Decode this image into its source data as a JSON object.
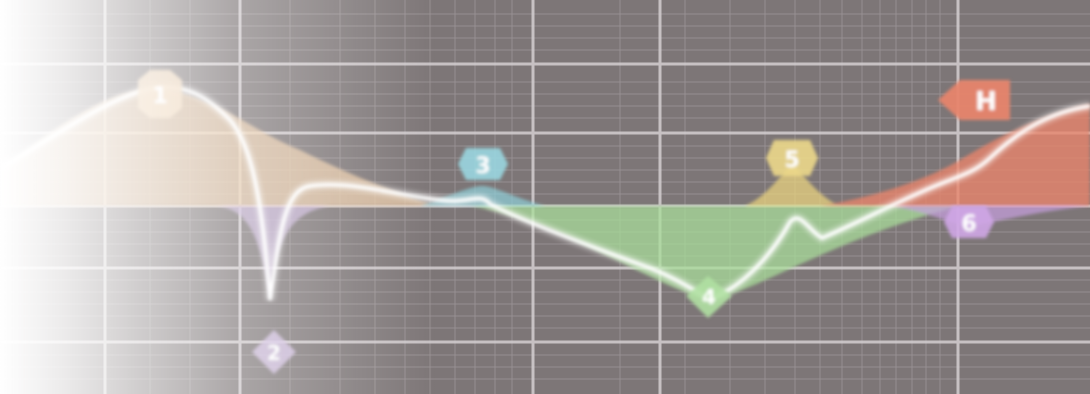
{
  "equalizer": {
    "background_color": "#7d7677",
    "grid_color": "#c9c4c6",
    "curve_color": "#ffffff",
    "bands": [
      {
        "id": "1",
        "label": "1",
        "color": "#e9c9a6",
        "type": "bell",
        "gain": "boost"
      },
      {
        "id": "2",
        "label": "2",
        "color": "#c8b4d8",
        "type": "notch",
        "gain": "cut"
      },
      {
        "id": "3",
        "label": "3",
        "color": "#8fd0da",
        "type": "bell",
        "gain": "small-boost"
      },
      {
        "id": "4",
        "label": "4",
        "color": "#a8dc9a",
        "type": "bell",
        "gain": "cut"
      },
      {
        "id": "5",
        "label": "5",
        "color": "#e8d27e",
        "type": "bell",
        "gain": "boost"
      },
      {
        "id": "6",
        "label": "6",
        "color": "#c8a0e0",
        "type": "bell",
        "gain": "cut"
      },
      {
        "id": "H",
        "label": "H",
        "color": "#e7846c",
        "type": "high-shelf",
        "gain": "boost"
      }
    ]
  }
}
